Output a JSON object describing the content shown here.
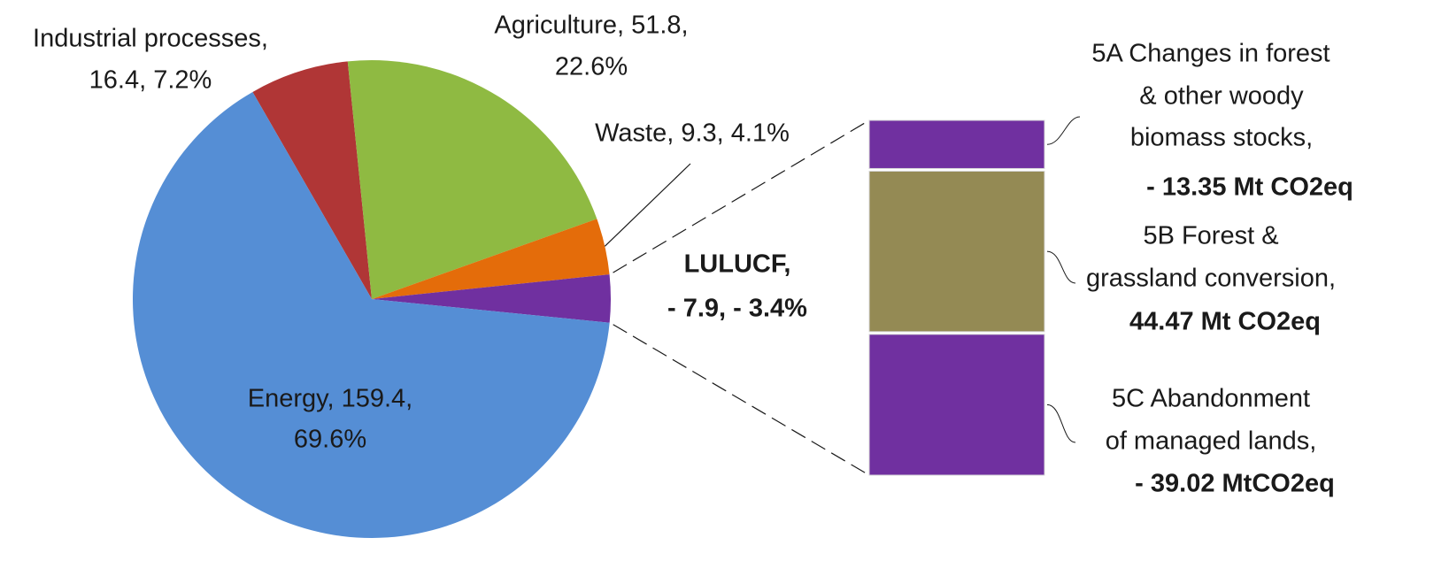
{
  "chart_data": {
    "type": "pie-of-bar",
    "pie": {
      "categories": [
        "Industrial processes",
        "Agriculture",
        "Waste",
        "LULUCF",
        "Energy"
      ],
      "values": [
        16.4,
        51.8,
        9.3,
        -7.9,
        159.4
      ],
      "colors": [
        "#b03636",
        "#8fba42",
        "#e46c0a",
        "#7030a0",
        "#558ed5"
      ],
      "labels": [
        [
          "Industrial processes,",
          "16.4,  7.2%"
        ],
        [
          "Agriculture, 51.8,",
          "22.6%"
        ],
        [
          "Waste, 9.3,  4.1%"
        ],
        [
          "LULUCF,",
          "- 7.9,  - 3.4%"
        ],
        [
          "Energy, 159.4,",
          "69.6%"
        ]
      ],
      "label_colors": [
        "#1a1a1a",
        "#1a1a1a",
        "#1a1a1a",
        "#3a3a9a",
        "#1a1a1a"
      ],
      "start_angle": -29.9
    },
    "bar": {
      "categories": [
        "5A",
        "5B",
        "5C"
      ],
      "values": [
        -13.35,
        44.47,
        -39.02
      ],
      "colors": [
        "#7030a0",
        "#948a54",
        "#7030a0"
      ],
      "labels": [
        [
          "5A Changes in forest",
          "& other woody",
          "biomass stocks,"
        ],
        [
          "5B Forest &",
          "grassland conversion,"
        ],
        [
          "5C Abandonment",
          "of managed lands,"
        ]
      ],
      "value_labels": [
        "- 13.35 Mt CO2eq",
        "44.47 Mt CO2eq",
        "- 39.02 MtCO2eq"
      ],
      "value_label_colors": [
        "#862a96",
        "#8c8a1c",
        "#862a96"
      ]
    }
  }
}
